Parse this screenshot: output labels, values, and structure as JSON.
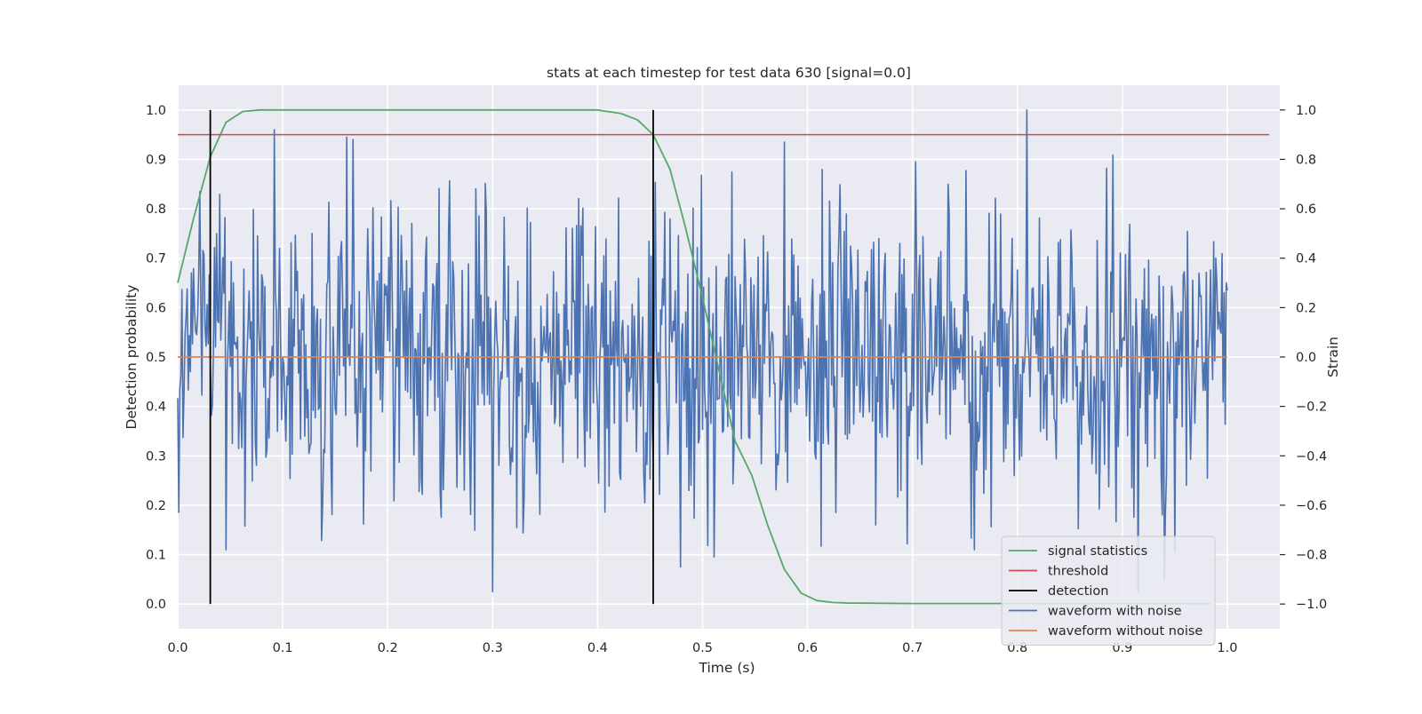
{
  "chart_data": {
    "type": "line",
    "title": "stats at each timestep for test data 630 [signal=0.0]",
    "xlabel": "Time (s)",
    "ylabel_left": "Detection probability",
    "ylabel_right": "Strain",
    "xlim": [
      0.0,
      1.05
    ],
    "ylim_left": [
      -0.05,
      1.05
    ],
    "ylim_right": [
      -1.1,
      1.1
    ],
    "x_ticks": [
      0.0,
      0.1,
      0.2,
      0.3,
      0.4,
      0.5,
      0.6,
      0.7,
      0.8,
      0.9,
      1.0
    ],
    "x_tick_labels": [
      "0.0",
      "0.1",
      "0.2",
      "0.3",
      "0.4",
      "0.5",
      "0.6",
      "0.7",
      "0.8",
      "0.9",
      "1.0"
    ],
    "y_left_ticks": [
      0.0,
      0.1,
      0.2,
      0.3,
      0.4,
      0.5,
      0.6,
      0.7,
      0.8,
      0.9,
      1.0
    ],
    "y_left_tick_labels": [
      "0.0",
      "0.1",
      "0.2",
      "0.3",
      "0.4",
      "0.5",
      "0.6",
      "0.7",
      "0.8",
      "0.9",
      "1.0"
    ],
    "y_right_ticks": [
      -1.0,
      -0.8,
      -0.6,
      -0.4,
      -0.2,
      0.0,
      0.2,
      0.4,
      0.6,
      0.8,
      1.0
    ],
    "y_right_tick_labels": [
      "−1.0",
      "−0.8",
      "−0.6",
      "−0.4",
      "−0.2",
      "0.0",
      "0.2",
      "0.4",
      "0.6",
      "0.8",
      "1.0"
    ],
    "grid": true,
    "legend_position": "lower-right",
    "series": [
      {
        "name": "signal statistics",
        "color": "#55a868",
        "axis": "left",
        "x": [
          0.0,
          0.015,
          0.031,
          0.046,
          0.062,
          0.078,
          0.1,
          0.2,
          0.3,
          0.4,
          0.406,
          0.422,
          0.438,
          0.453,
          0.469,
          0.484,
          0.5,
          0.516,
          0.531,
          0.547,
          0.562,
          0.578,
          0.594,
          0.609,
          0.625,
          0.64,
          0.7,
          0.8,
          0.9,
          0.984
        ],
        "y": [
          0.65,
          0.78,
          0.905,
          0.975,
          0.997,
          1.0,
          1.0,
          1.0,
          1.0,
          1.0,
          0.998,
          0.993,
          0.98,
          0.95,
          0.88,
          0.76,
          0.62,
          0.47,
          0.33,
          0.26,
          0.16,
          0.07,
          0.022,
          0.007,
          0.003,
          0.002,
          0.001,
          0.001,
          0.001,
          0.001
        ]
      },
      {
        "name": "threshold",
        "color": "#c44e52",
        "axis": "left",
        "x": [
          0.0,
          1.04
        ],
        "y": [
          0.95,
          0.95
        ]
      },
      {
        "name": "detection",
        "color": "#000000",
        "axis": "left",
        "type": "vlines",
        "x": [
          0.031,
          0.453
        ],
        "ymin": 0.0,
        "ymax": 1.0
      },
      {
        "name": "waveform with noise",
        "color": "#4c72b0",
        "axis": "right",
        "x_start": 0.0,
        "x_end": 1.0,
        "peak_values": [
          {
            "x": 0.092,
            "y": 0.92
          },
          {
            "x": 0.161,
            "y": 0.89
          },
          {
            "x": 0.167,
            "y": 0.88
          },
          {
            "x": 0.046,
            "y": -0.78
          },
          {
            "x": 0.3,
            "y": -0.95
          },
          {
            "x": 0.578,
            "y": 0.87
          },
          {
            "x": 0.809,
            "y": 1.0
          },
          {
            "x": 0.915,
            "y": -0.95
          },
          {
            "x": 0.94,
            "y": -0.9
          }
        ]
      },
      {
        "name": "waveform without noise",
        "color": "#dd8452",
        "axis": "right",
        "x": [
          0.0,
          1.0
        ],
        "y": [
          0.0,
          0.0
        ]
      }
    ]
  }
}
